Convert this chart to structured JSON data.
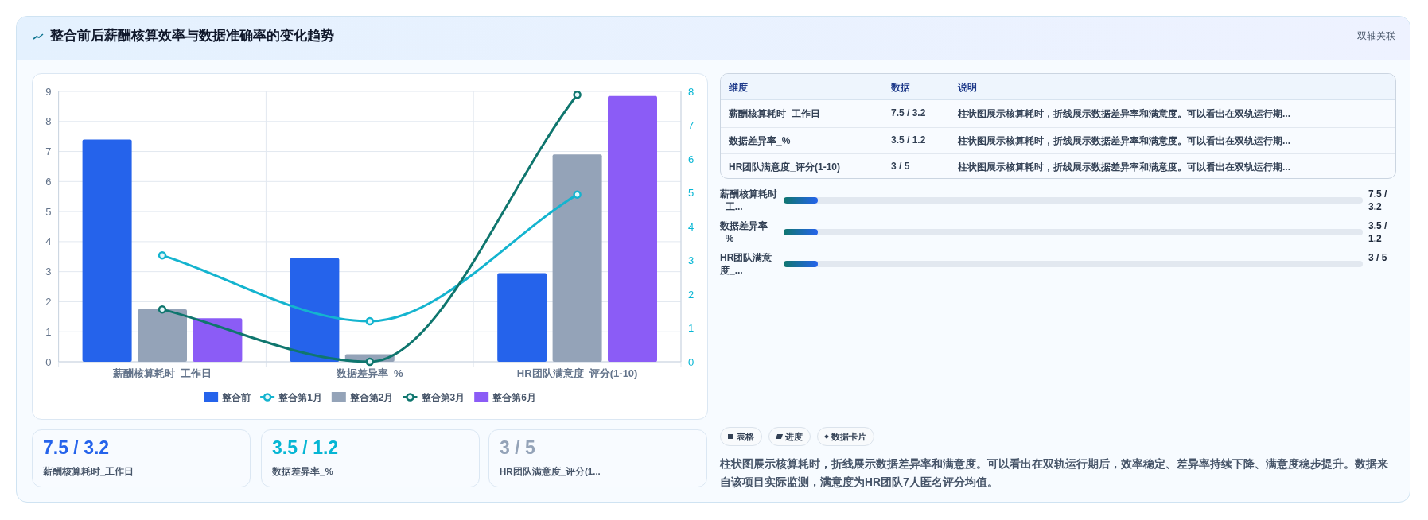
{
  "chart_data": [
    {
      "type": "bar",
      "title": "整合前后薪酬核算效率与数据准确率的变化趋势",
      "annotations": [
        "双轴关联"
      ],
      "categories": [
        "薪酬核算耗时_工作日",
        "数据差异率_%",
        "HR团队满意度_评分(1-10)"
      ],
      "series": [
        {
          "name": "整合前",
          "type": "bar",
          "color": "#2563eb",
          "values": [
            7.4,
            3.45,
            2.95
          ]
        },
        {
          "name": "整合第1月",
          "type": "line",
          "axis": "y2",
          "color": "#14b4cf",
          "values": [
            3.15,
            1.2,
            4.95
          ]
        },
        {
          "name": "整合第2月",
          "type": "bar",
          "color": "#94a3b8",
          "values": [
            1.75,
            0.25,
            6.9
          ]
        },
        {
          "name": "整合第3月",
          "type": "line",
          "axis": "y2",
          "color": "#0f766e",
          "values": [
            1.55,
            0,
            7.9
          ]
        },
        {
          "name": "整合第6月",
          "type": "bar",
          "color": "#8b5cf6",
          "values": [
            1.45,
            0,
            8.85
          ]
        }
      ],
      "ylim": [
        0,
        9
      ],
      "yticks": [
        0,
        1,
        2,
        3,
        4,
        5,
        6,
        7,
        8,
        9
      ],
      "y2lim": [
        0,
        8
      ],
      "y2ticks": [
        0,
        1,
        2,
        3,
        4,
        5,
        6,
        7,
        8
      ],
      "grid": true,
      "legend": "bottom",
      "marker": "circle",
      "line_style": "solid"
    },
    {
      "type": "other",
      "annotations": [
        "维度",
        "数据",
        "说明",
        "薪酬核算耗时_工作日",
        "7.5 / 3.2",
        "柱状图展示核算耗时，折线展示数据差异率和满意度。可以看出在双轨运行期...",
        "数据差异率_%",
        "3.5 / 1.2",
        "柱状图展示核算耗时，折线展示数据差异率和满意度。可以看出在双轨运行期...",
        "HR团队满意度_评分(1-10)",
        "3 / 5",
        "柱状图展示核算耗时，折线展示数据差异率和满意度。可以看出在双轨运行期..."
      ]
    },
    {
      "type": "other",
      "annotations": [
        "薪酬核算耗时_工...",
        "7.5 / 3.2",
        "数据差异率_%",
        "3.5 / 1.2",
        "HR团队满意度_...",
        "3 / 5"
      ]
    },
    {
      "type": "other",
      "annotations": [
        "7.5 / 3.2",
        "薪酬核算耗时_工作日",
        "3.5 / 1.2",
        "数据差异率_%",
        "3 / 5",
        "HR团队满意度_评分(1..."
      ]
    },
    {
      "type": "other",
      "annotations": [
        "表格",
        "进度",
        "数据卡片",
        "柱状图展示核算耗时，折线展示数据差异率和满意度。可以看出在双轨运行期后，效率稳定、差异率持续下降、满意度稳步提升。数据来自该项目实际监测，满意度为HR团队7人匿名评分均值。"
      ]
    }
  ]
}
